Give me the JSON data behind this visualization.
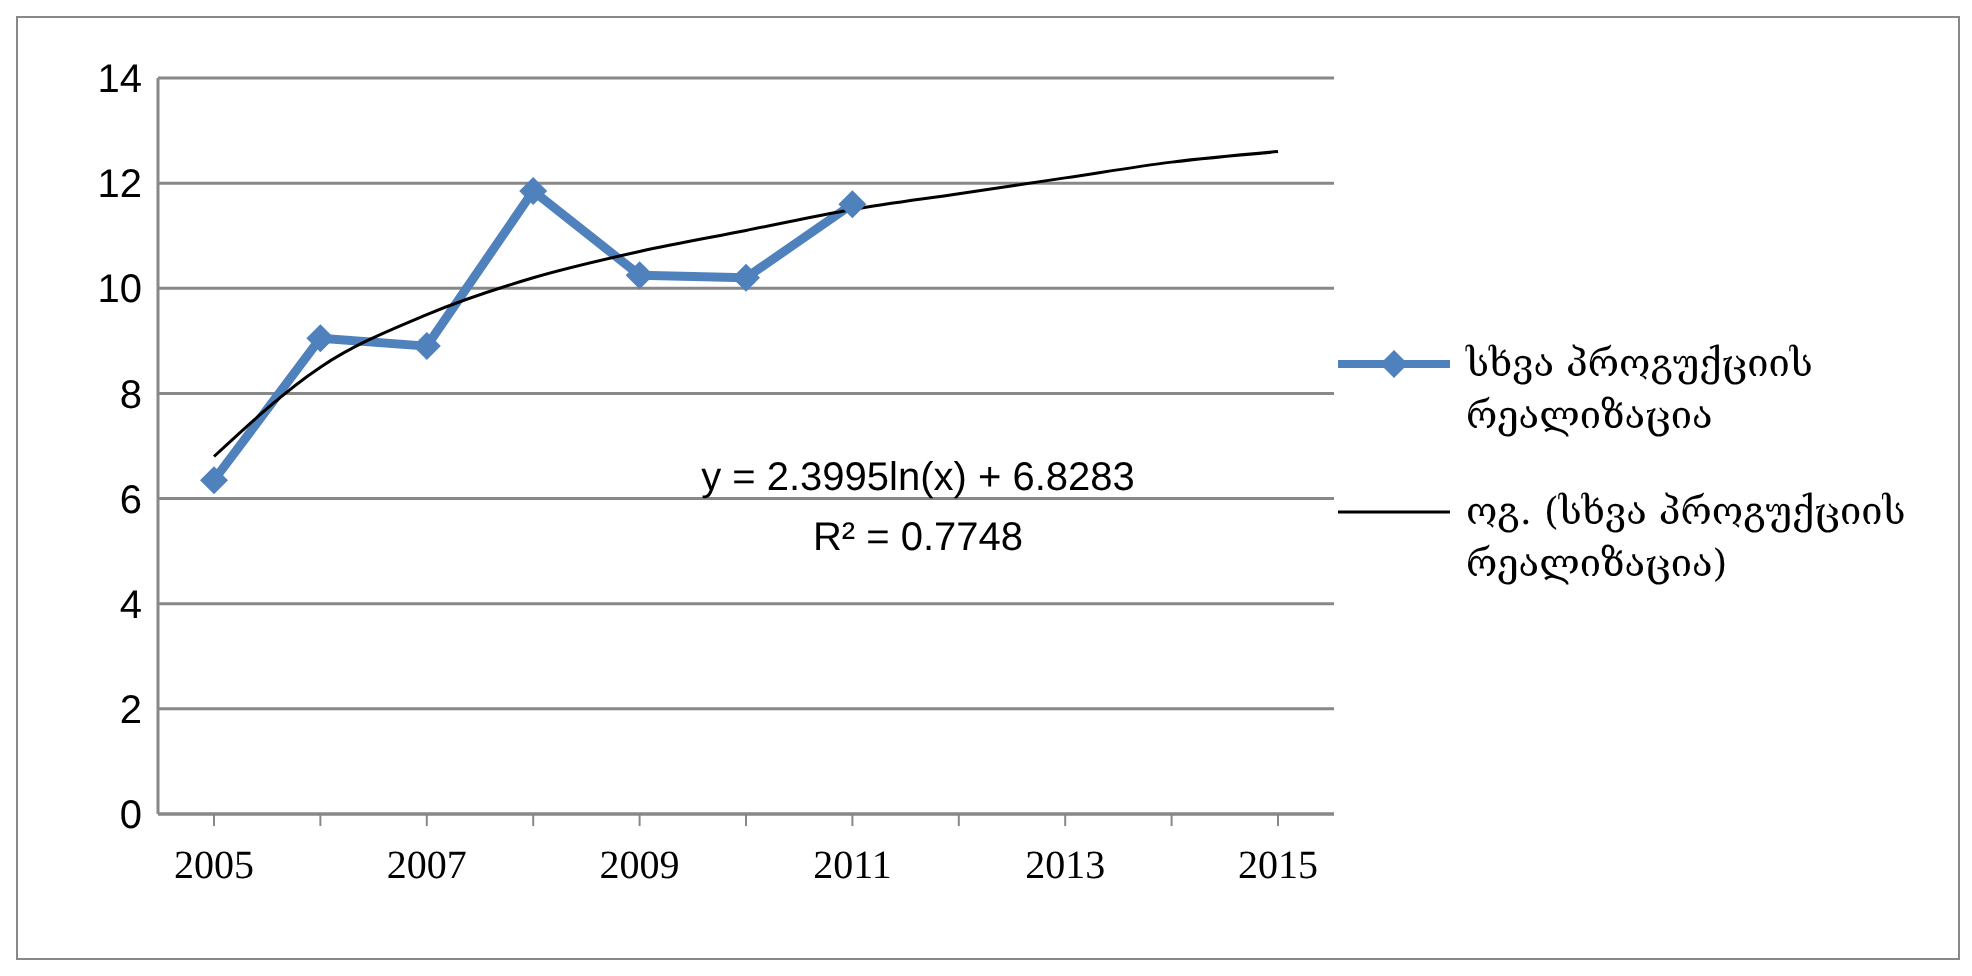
{
  "chart_data": {
    "type": "line",
    "categories": [
      "2005",
      null,
      "2007",
      null,
      "2009",
      null,
      "2011",
      null,
      "2013",
      null,
      "2015"
    ],
    "series": [
      {
        "name": "სხვა პროგუქციის რეალიზაცია",
        "color": "#4f81bd",
        "marker": "diamond",
        "values": [
          6.35,
          9.05,
          8.9,
          11.85,
          10.25,
          10.2,
          11.6,
          null,
          null,
          null,
          null
        ]
      },
      {
        "name": "ოგ. (სხვა პროგუქციის რეალიზაცია)",
        "color": "#000000",
        "marker": "none",
        "values": [
          6.8,
          8.5,
          9.5,
          10.2,
          10.7,
          11.1,
          11.5,
          11.8,
          12.1,
          12.4,
          12.6
        ]
      }
    ],
    "annotations": [
      "y = 2.3995ln(x) + 6.8283",
      "R² = 0.7748"
    ],
    "ylim": [
      0,
      14
    ],
    "yticks": [
      0,
      2,
      4,
      6,
      8,
      10,
      12,
      14
    ],
    "grid": "y",
    "legend": "right"
  }
}
